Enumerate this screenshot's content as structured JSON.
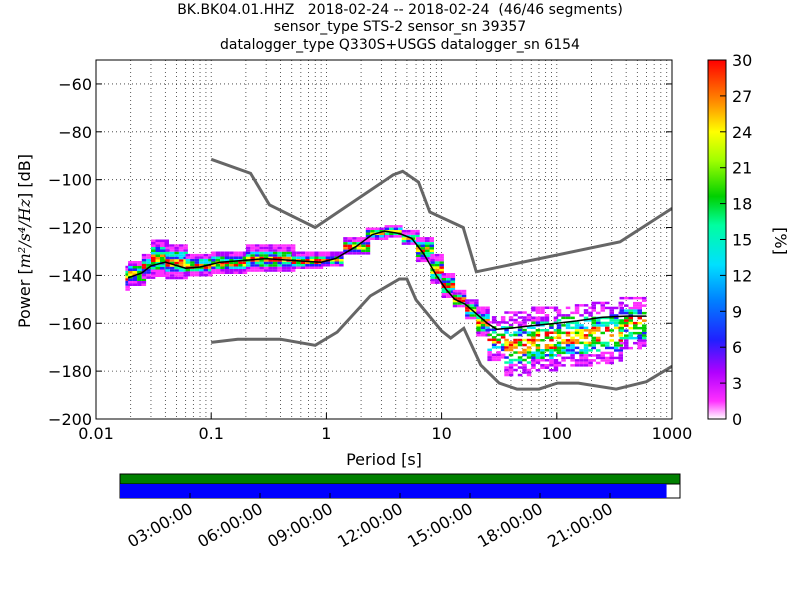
{
  "titles": {
    "line1": "BK.BK04.01.HHZ   2018-02-24 -- 2018-02-24  (46/46 segments)",
    "line2": "sensor_type STS-2 sensor_sn 39357",
    "line3": "datalogger_type Q330S+USGS datalogger_sn 6154"
  },
  "chart_data": {
    "type": "heatmap",
    "xlabel": "Period [s]",
    "ylabel": "Power [m²/s⁴/Hz] [dB]",
    "ylabel_parts": {
      "pre": "Power [",
      "math": "m²/s⁴/Hz",
      "post": "] [dB]"
    },
    "x_scale": "log",
    "xlim": [
      0.01,
      1000
    ],
    "ylim": [
      -200,
      -50
    ],
    "x_ticks": [
      0.01,
      0.1,
      1,
      10,
      100,
      1000
    ],
    "x_tick_labels": [
      "0.01",
      "0.1",
      "1",
      "10",
      "100",
      "1000"
    ],
    "y_ticks": [
      -200,
      -180,
      -160,
      -140,
      -120,
      -100,
      -80,
      -60
    ],
    "y_tick_labels": [
      "−200",
      "−180",
      "−160",
      "−140",
      "−120",
      "−100",
      "−80",
      "−60"
    ],
    "grid": true,
    "colorbar": {
      "label": "[%]",
      "range": [
        0,
        30
      ],
      "ticks": [
        "0",
        "3",
        "6",
        "9",
        "12",
        "15",
        "18",
        "21",
        "24",
        "27",
        "30"
      ]
    },
    "noise_models": [
      {
        "name": "high",
        "points": [
          [
            0.1,
            -91.5
          ],
          [
            0.22,
            -97.4
          ],
          [
            0.32,
            -110.5
          ],
          [
            0.8,
            -120
          ],
          [
            3.8,
            -98
          ],
          [
            4.6,
            -96.5
          ],
          [
            6.3,
            -101
          ],
          [
            7.9,
            -113.5
          ],
          [
            15.4,
            -120
          ],
          [
            20,
            -138.5
          ],
          [
            354,
            -126
          ],
          [
            1000,
            -112
          ]
        ]
      },
      {
        "name": "low",
        "points": [
          [
            0.1,
            -168
          ],
          [
            0.17,
            -166.7
          ],
          [
            0.4,
            -166.7
          ],
          [
            0.8,
            -169.2
          ],
          [
            1.24,
            -163.7
          ],
          [
            2.4,
            -148.6
          ],
          [
            4.3,
            -141.5
          ],
          [
            5,
            -141.5
          ],
          [
            6,
            -150.2
          ],
          [
            10,
            -163.2
          ],
          [
            12,
            -166.2
          ],
          [
            15.6,
            -162.1
          ],
          [
            21.9,
            -177.5
          ],
          [
            31.6,
            -185
          ],
          [
            45,
            -187.5
          ],
          [
            70,
            -187.5
          ],
          [
            101,
            -185
          ],
          [
            154,
            -185
          ],
          [
            328,
            -187.5
          ],
          [
            600,
            -184.4
          ],
          [
            1000,
            -178
          ]
        ]
      }
    ],
    "psd_mean": {
      "points": [
        [
          0.019,
          -141
        ],
        [
          0.025,
          -139
        ],
        [
          0.03,
          -136
        ],
        [
          0.04,
          -134.5
        ],
        [
          0.06,
          -137
        ],
        [
          0.08,
          -136.5
        ],
        [
          0.12,
          -134.5
        ],
        [
          0.3,
          -133
        ],
        [
          0.6,
          -134
        ],
        [
          0.9,
          -134.5
        ],
        [
          1.2,
          -133
        ],
        [
          1.8,
          -128
        ],
        [
          2.5,
          -123
        ],
        [
          3.2,
          -121.5
        ],
        [
          4.3,
          -122.5
        ],
        [
          5.5,
          -124.5
        ],
        [
          7,
          -131
        ],
        [
          9,
          -140
        ],
        [
          11,
          -146
        ],
        [
          13,
          -150
        ],
        [
          16,
          -152
        ],
        [
          20,
          -156
        ],
        [
          25,
          -160
        ],
        [
          30,
          -162.5
        ],
        [
          40,
          -162
        ],
        [
          60,
          -161
        ],
        [
          100,
          -160
        ],
        [
          150,
          -159
        ],
        [
          250,
          -157.5
        ],
        [
          400,
          -157
        ],
        [
          600,
          -157
        ]
      ]
    },
    "psd_spread": [
      {
        "period": [
          0.018,
          0.019
        ],
        "dB": [
          -146,
          -136
        ]
      },
      {
        "period": [
          0.019,
          0.025
        ],
        "dB": [
          -144,
          -134
        ]
      },
      {
        "period": [
          0.025,
          0.03
        ],
        "dB": [
          -141,
          -131
        ]
      },
      {
        "period": [
          0.03,
          0.04
        ],
        "dB": [
          -140,
          -125
        ]
      },
      {
        "period": [
          0.04,
          0.06
        ],
        "dB": [
          -141,
          -127
        ]
      },
      {
        "period": [
          0.06,
          0.1
        ],
        "dB": [
          -140,
          -131
        ]
      },
      {
        "period": [
          0.1,
          0.2
        ],
        "dB": [
          -139,
          -130
        ]
      },
      {
        "period": [
          0.2,
          0.5
        ],
        "dB": [
          -138,
          -127
        ]
      },
      {
        "period": [
          0.5,
          0.9
        ],
        "dB": [
          -137,
          -130
        ]
      },
      {
        "period": [
          0.9,
          1.4
        ],
        "dB": [
          -136,
          -130
        ]
      },
      {
        "period": [
          1.4,
          2.2
        ],
        "dB": [
          -131,
          -124
        ]
      },
      {
        "period": [
          2.2,
          3.2
        ],
        "dB": [
          -125,
          -120
        ]
      },
      {
        "period": [
          3.2,
          4.5
        ],
        "dB": [
          -124,
          -119
        ]
      },
      {
        "period": [
          4.5,
          6
        ],
        "dB": [
          -127,
          -121
        ]
      },
      {
        "period": [
          6,
          8
        ],
        "dB": [
          -134,
          -124
        ]
      },
      {
        "period": [
          8,
          10
        ],
        "dB": [
          -143,
          -131
        ]
      },
      {
        "period": [
          10,
          12.5
        ],
        "dB": [
          -149,
          -139
        ]
      },
      {
        "period": [
          12.5,
          16
        ],
        "dB": [
          -153,
          -146
        ]
      },
      {
        "period": [
          16,
          20
        ],
        "dB": [
          -158,
          -150
        ]
      },
      {
        "period": [
          20,
          25
        ],
        "dB": [
          -165,
          -153
        ]
      },
      {
        "period": [
          25,
          35
        ],
        "dB": [
          -175,
          -157
        ]
      },
      {
        "period": [
          35,
          60
        ],
        "dB": [
          -182,
          -155
        ]
      },
      {
        "period": [
          60,
          100
        ],
        "dB": [
          -180,
          -153
        ]
      },
      {
        "period": [
          100,
          200
        ],
        "dB": [
          -178,
          -152
        ]
      },
      {
        "period": [
          200,
          350
        ],
        "dB": [
          -177,
          -151
        ]
      },
      {
        "period": [
          350,
          600
        ],
        "dB": [
          -170,
          -149
        ]
      }
    ]
  },
  "timeline": {
    "labels": [
      "03:00:00",
      "06:00:00",
      "09:00:00",
      "12:00:00",
      "15:00:00",
      "18:00:00",
      "21:00:00"
    ],
    "coverage_fraction": 0.976
  }
}
